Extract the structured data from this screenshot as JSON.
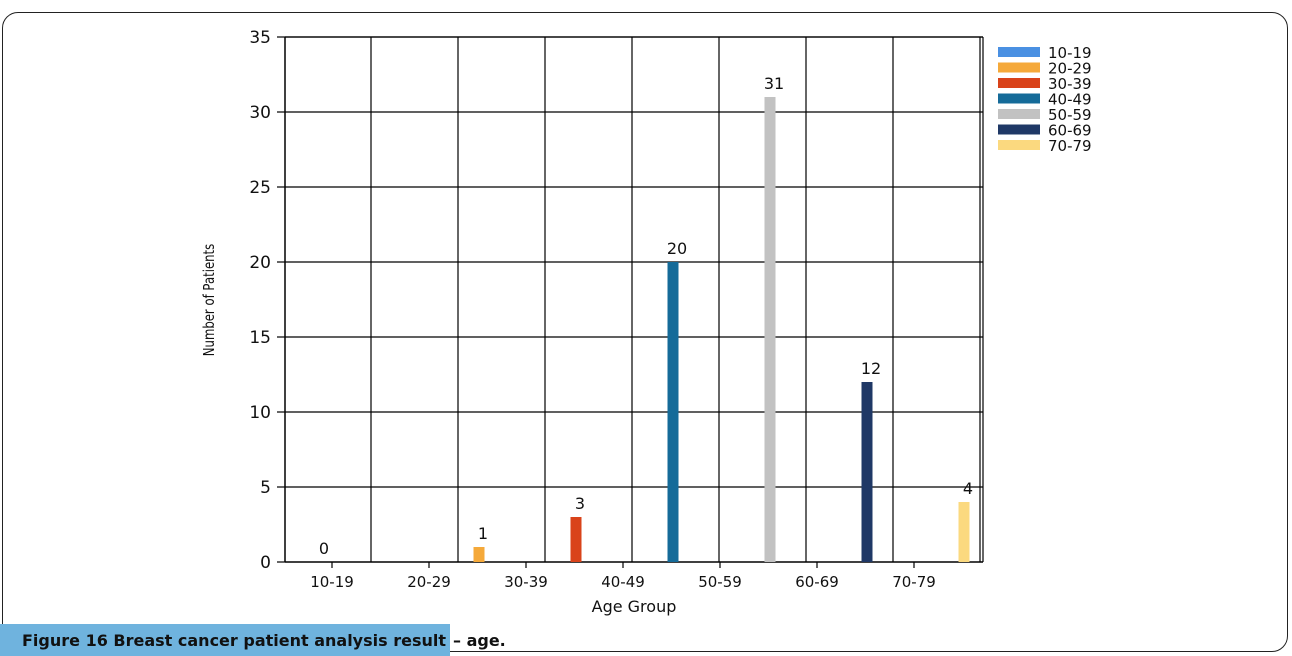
{
  "chart_data": {
    "type": "bar",
    "categories": [
      "10-19",
      "20-29",
      "30-39",
      "40-49",
      "50-59",
      "60-69",
      "70-79"
    ],
    "values": [
      0,
      1,
      3,
      20,
      31,
      12,
      4
    ],
    "colors": [
      "#4a90e2",
      "#f5a93a",
      "#d9431a",
      "#156b99",
      "#c2c2c2",
      "#1f3866",
      "#fbd97f"
    ],
    "data_labels": [
      "0",
      "1",
      "3",
      "20",
      "31",
      "12",
      "4"
    ],
    "xlabel": "Age Group",
    "ylabel": "Number of Patients",
    "ylim": [
      0,
      35
    ],
    "yticks": [
      0,
      5,
      10,
      15,
      20,
      25,
      30,
      35
    ],
    "grid": true,
    "legend": {
      "position": "top-right",
      "entries": [
        "10-19",
        "20-29",
        "30-39",
        "40-49",
        "50-59",
        "60-69",
        "70-79"
      ]
    }
  },
  "caption": {
    "figure_label": "Figure 16",
    "highlighted_text": "Breast cancer patient analysis result",
    "rest_text": "– age."
  }
}
